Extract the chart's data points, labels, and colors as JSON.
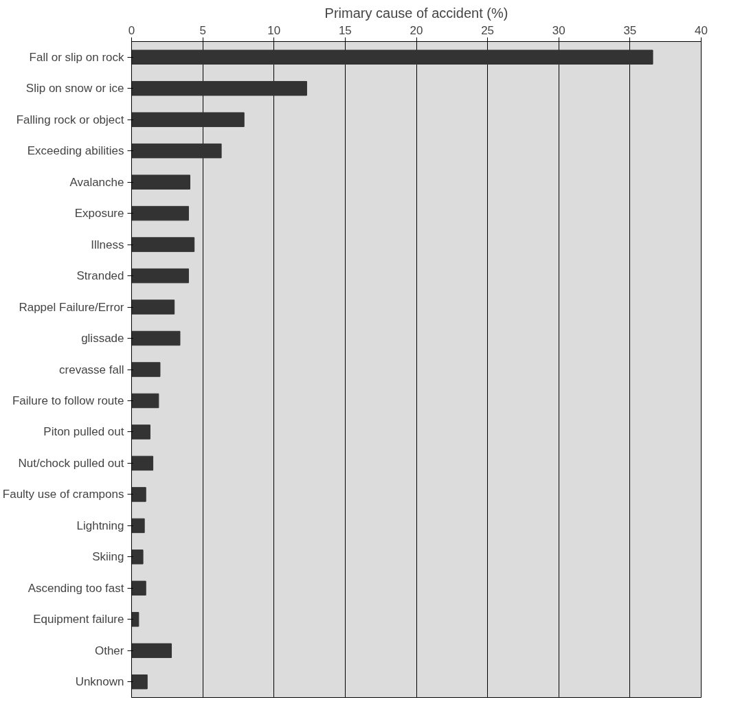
{
  "chart_data": {
    "type": "bar",
    "orientation": "horizontal",
    "title": "Primary cause of accident (%)",
    "categories": [
      "Fall or slip on rock",
      "Slip on snow or ice",
      "Falling rock or object",
      "Exceeding abilities",
      "Avalanche",
      "Exposure",
      "Illness",
      "Stranded",
      "Rappel Failure/Error",
      "glissade",
      "crevasse fall",
      "Failure to follow route",
      "Piton pulled out",
      "Nut/chock pulled out",
      "Faulty use of crampons",
      "Lightning",
      "Skiing",
      "Ascending too fast",
      "Equipment failure",
      "Other",
      "Unknown"
    ],
    "values": [
      36.6,
      12.3,
      7.9,
      6.3,
      4.1,
      4.0,
      4.4,
      4.0,
      3.0,
      3.4,
      2.0,
      1.9,
      1.3,
      1.5,
      1.0,
      0.9,
      0.8,
      1.0,
      0.5,
      2.8,
      1.1
    ],
    "color": "#333333",
    "xlim": [
      0,
      40
    ],
    "xticks": [
      0,
      5,
      10,
      15,
      20,
      25,
      30,
      35,
      40
    ],
    "grid": "x"
  }
}
